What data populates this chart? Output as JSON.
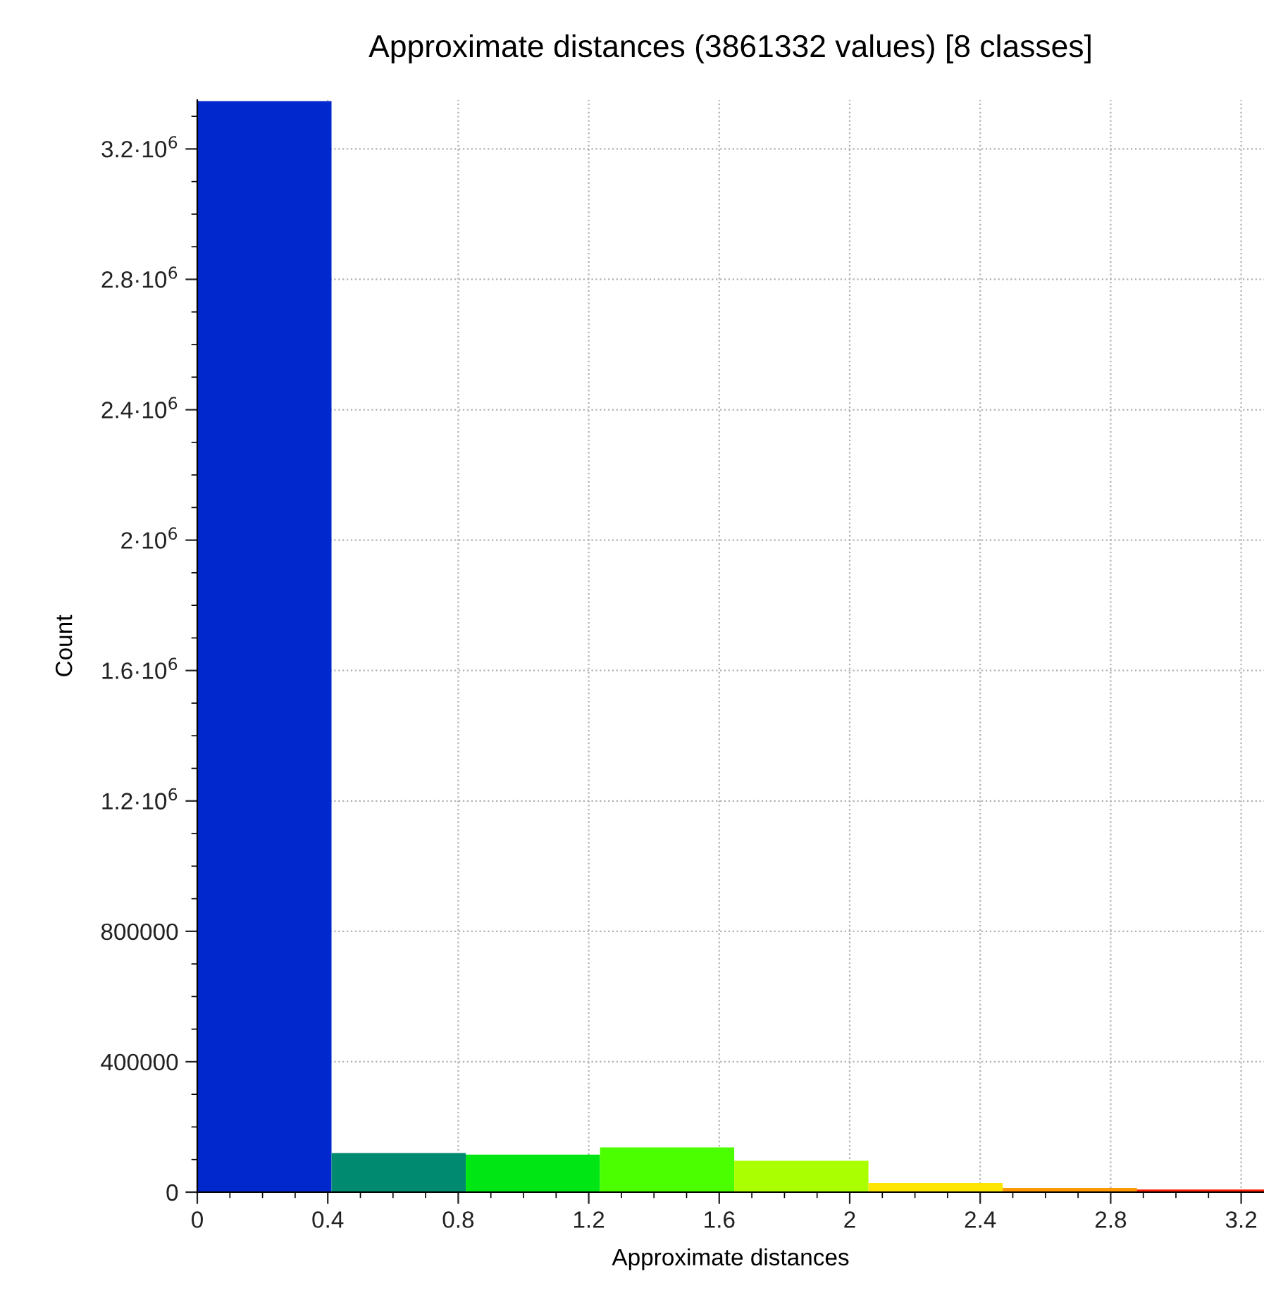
{
  "chart_data": {
    "type": "histogram",
    "title": "Approximate distances (3861332 values) [8 classes]",
    "xlabel": "Approximate distances",
    "ylabel": "Count",
    "bins": [
      0,
      0.4115,
      0.823,
      1.2345,
      1.646,
      2.0575,
      2.469,
      2.8805,
      3.292
    ],
    "values": [
      3347000,
      120000,
      115000,
      137000,
      96000,
      28000,
      13000,
      8000
    ],
    "colors": [
      "#0028cc",
      "#008a70",
      "#00e614",
      "#4cff00",
      "#aaff00",
      "#ffe600",
      "#ff9900",
      "#ff2000"
    ],
    "xlim": [
      0,
      3.27
    ],
    "xticks": [
      0,
      0.4,
      0.8,
      1.2,
      1.6,
      2,
      2.4,
      2.8,
      3.2
    ],
    "ylim": [
      0,
      3350000
    ],
    "yticks": [
      0,
      400000,
      800000,
      {
        "value": 1200000,
        "label": "1.2·10$^{6}$"
      },
      {
        "value": 1600000,
        "label": "1.6·10$^{6}$"
      },
      {
        "value": 2000000,
        "label": "2·10$^{6}$"
      },
      {
        "value": 2400000,
        "label": "2.4·10$^{6}$"
      },
      {
        "value": 2800000,
        "label": "2.8·10$^{6}$"
      },
      {
        "value": 3200000,
        "label": "3.2·10$^{6}$"
      }
    ],
    "grid": true
  }
}
